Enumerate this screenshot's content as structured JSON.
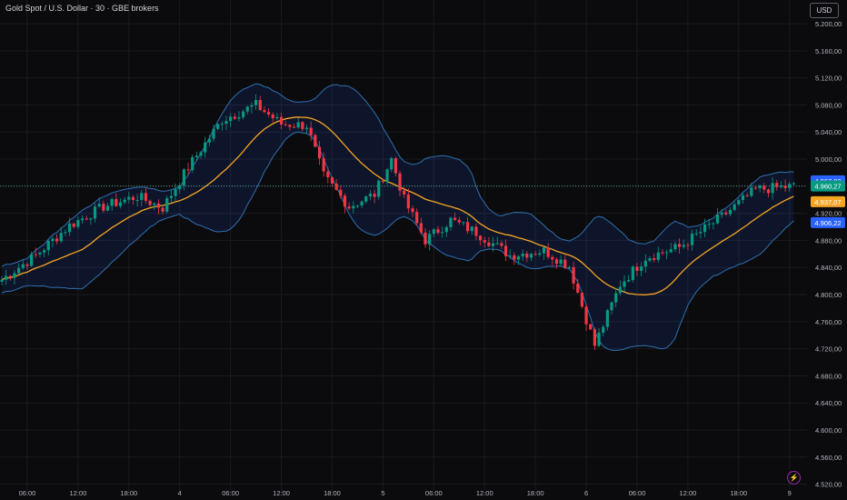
{
  "header": {
    "title": "Gold Spot / U.S. Dollar · 30 · GBE brokers",
    "currency": "USD"
  },
  "colors": {
    "bg": "#0b0b0d",
    "grid": "#1a1b20",
    "up": "#089981",
    "down": "#f23645",
    "band": "#2f6fb0",
    "bandFill": "rgba(41,98,255,0.12)",
    "basis": "#f5a524",
    "text": "#b2b5be"
  },
  "icons": {
    "flash": "lightning-icon"
  },
  "chart_data": {
    "type": "candlestick",
    "title": "Gold Spot / U.S. Dollar · 30 · GBE brokers",
    "ylim": [
      4510,
      5235
    ],
    "y_ticks": [
      "5.200,00",
      "5.160,00",
      "5.120,00",
      "5.080,00",
      "5.040,00",
      "5.000,00",
      "4.960,00",
      "4.920,00",
      "4.880,00",
      "4.840,00",
      "4.800,00",
      "4.760,00",
      "4.720,00",
      "4.680,00",
      "4.640,00",
      "4.600,00",
      "4.560,00",
      "4.520,00"
    ],
    "y_tick_values": [
      5200,
      5160,
      5120,
      5080,
      5040,
      5000,
      4960,
      4920,
      4880,
      4840,
      4800,
      4760,
      4720,
      4680,
      4640,
      4600,
      4560,
      4520
    ],
    "x_ticks": [
      "06:00",
      "12:00",
      "18:00",
      "4",
      "06:00",
      "12:00",
      "18:00",
      "5",
      "06:00",
      "12:00",
      "18:00",
      "6",
      "06:00",
      "12:00",
      "18:00",
      "9"
    ],
    "x_tick_index": [
      6,
      18,
      30,
      42,
      54,
      66,
      78,
      90,
      102,
      114,
      126,
      138,
      150,
      162,
      174,
      186
    ],
    "bars": 188,
    "anchors": [
      [
        0,
        4822
      ],
      [
        8,
        4858
      ],
      [
        16,
        4902
      ],
      [
        24,
        4930
      ],
      [
        32,
        4945
      ],
      [
        38,
        4928
      ],
      [
        44,
        4988
      ],
      [
        52,
        5058
      ],
      [
        60,
        5080
      ],
      [
        66,
        5052
      ],
      [
        72,
        5050
      ],
      [
        76,
        4975
      ],
      [
        82,
        4930
      ],
      [
        88,
        4948
      ],
      [
        92,
        5000
      ],
      [
        95,
        4940
      ],
      [
        100,
        4880
      ],
      [
        106,
        4910
      ],
      [
        112,
        4892
      ],
      [
        120,
        4858
      ],
      [
        128,
        4865
      ],
      [
        134,
        4842
      ],
      [
        140,
        4725
      ],
      [
        146,
        4815
      ],
      [
        152,
        4855
      ],
      [
        160,
        4870
      ],
      [
        170,
        4915
      ],
      [
        178,
        4955
      ],
      [
        187,
        4960
      ]
    ],
    "last_price": 4960.27,
    "price_labels": [
      {
        "text": "4.967,92",
        "value": 4967.92,
        "color": "#2962ff"
      },
      {
        "text": "4.960,27",
        "value": 4960.27,
        "color": "#089981"
      },
      {
        "text": "4.937,07",
        "value": 4937.07,
        "color": "#f5a524"
      },
      {
        "text": "4.906,22",
        "value": 4906.22,
        "color": "#2962ff"
      }
    ],
    "indicator": "Bollinger Bands"
  }
}
